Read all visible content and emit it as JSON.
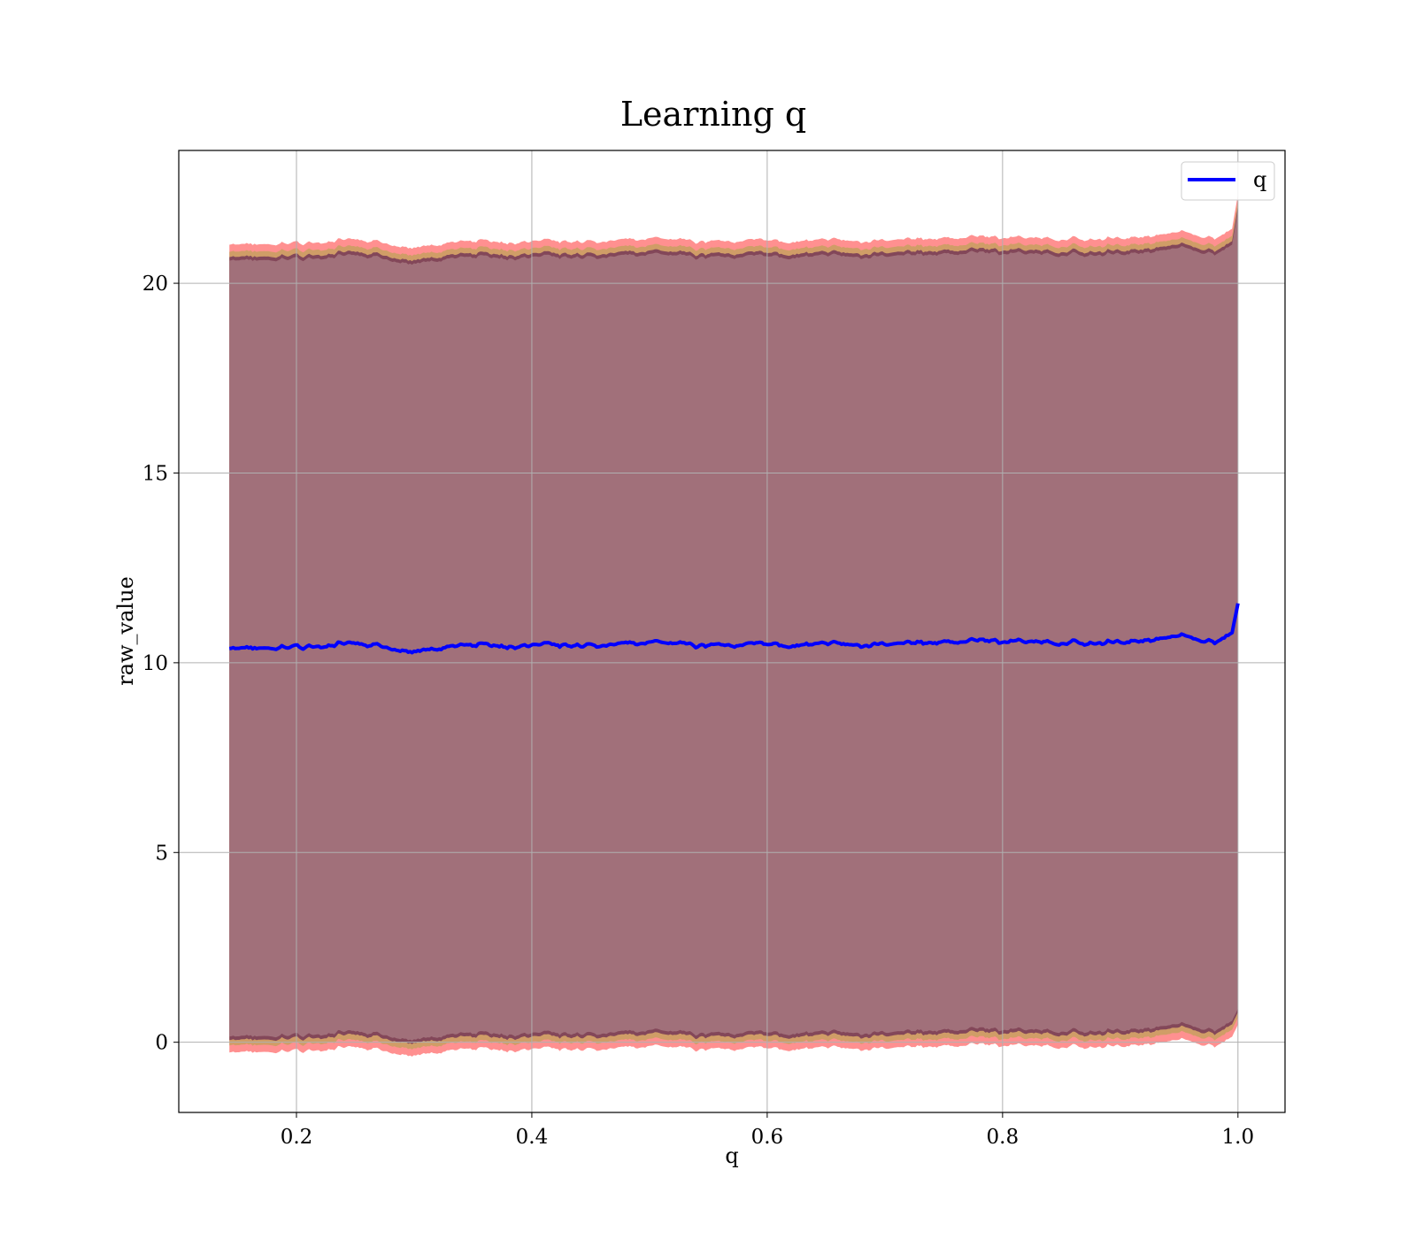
{
  "chart_data": {
    "type": "line",
    "title": "Learning q",
    "xlabel": "q",
    "ylabel": "raw_value",
    "xlim": [
      0.1,
      1.04
    ],
    "ylim": [
      -1.85,
      23.5
    ],
    "xticks": [
      0.2,
      0.4,
      0.6,
      0.8,
      1.0
    ],
    "xtick_labels": [
      "0.2",
      "0.4",
      "0.6",
      "0.8",
      "1.0"
    ],
    "yticks": [
      0,
      5,
      10,
      15,
      20
    ],
    "ytick_labels": [
      "0",
      "5",
      "10",
      "15",
      "20"
    ],
    "grid": true,
    "legend": {
      "position": "top-right",
      "entries": [
        "q"
      ]
    },
    "colors": {
      "line": "#0000ff",
      "band_outer": "#ff6b6b",
      "band_mid": "#c8a060",
      "band_inner": "#7a3e58",
      "fill": "#a1707a",
      "grid": "#b0b0b0"
    },
    "series": [
      {
        "name": "q",
        "x": [
          0.143,
          0.16,
          0.18,
          0.2,
          0.22,
          0.24,
          0.26,
          0.28,
          0.3,
          0.32,
          0.34,
          0.36,
          0.38,
          0.4,
          0.42,
          0.44,
          0.46,
          0.48,
          0.5,
          0.52,
          0.54,
          0.56,
          0.58,
          0.6,
          0.62,
          0.64,
          0.66,
          0.68,
          0.7,
          0.72,
          0.74,
          0.76,
          0.78,
          0.8,
          0.82,
          0.84,
          0.86,
          0.88,
          0.9,
          0.92,
          0.94,
          0.96,
          0.98,
          0.995,
          1.0
        ],
        "y": [
          10.35,
          10.4,
          10.35,
          10.45,
          10.4,
          10.5,
          10.45,
          10.4,
          10.3,
          10.35,
          10.45,
          10.5,
          10.4,
          10.45,
          10.5,
          10.4,
          10.45,
          10.5,
          10.55,
          10.5,
          10.45,
          10.5,
          10.45,
          10.5,
          10.45,
          10.5,
          10.5,
          10.45,
          10.5,
          10.55,
          10.5,
          10.55,
          10.6,
          10.55,
          10.6,
          10.5,
          10.55,
          10.5,
          10.55,
          10.6,
          10.65,
          10.7,
          10.5,
          10.8,
          11.6
        ]
      },
      {
        "x": [
          0.143,
          0.16,
          0.18,
          0.2,
          0.22,
          0.24,
          0.26,
          0.28,
          0.3,
          0.32,
          0.34,
          0.36,
          0.38,
          0.4,
          0.42,
          0.44,
          0.46,
          0.48,
          0.5,
          0.52,
          0.54,
          0.56,
          0.58,
          0.6,
          0.62,
          0.64,
          0.66,
          0.68,
          0.7,
          0.72,
          0.74,
          0.76,
          0.78,
          0.8,
          0.82,
          0.84,
          0.86,
          0.88,
          0.9,
          0.92,
          0.94,
          0.96,
          0.98,
          0.995,
          1.0
        ],
        "upper": [
          20.9,
          20.95,
          20.9,
          21.0,
          20.95,
          21.05,
          21.0,
          20.95,
          20.85,
          20.9,
          21.0,
          21.05,
          20.95,
          21.0,
          21.05,
          20.95,
          21.0,
          21.05,
          21.1,
          21.05,
          21.0,
          21.05,
          21.0,
          21.05,
          21.0,
          21.05,
          21.05,
          21.0,
          21.05,
          21.1,
          21.05,
          21.1,
          21.15,
          21.1,
          21.15,
          21.05,
          21.1,
          21.05,
          21.1,
          21.15,
          21.2,
          21.25,
          21.05,
          21.35,
          22.3
        ],
        "lower": [
          -0.2,
          -0.15,
          -0.2,
          -0.1,
          -0.15,
          -0.05,
          -0.1,
          -0.15,
          -0.25,
          -0.2,
          -0.1,
          -0.05,
          -0.15,
          -0.1,
          -0.05,
          -0.15,
          -0.1,
          -0.05,
          0.0,
          -0.05,
          -0.1,
          -0.05,
          -0.1,
          -0.05,
          -0.1,
          -0.05,
          -0.05,
          -0.1,
          -0.05,
          0.0,
          -0.05,
          0.0,
          0.05,
          0.0,
          0.05,
          -0.05,
          0.0,
          -0.05,
          0.0,
          0.05,
          0.1,
          0.15,
          -0.05,
          0.25,
          0.6
        ]
      }
    ]
  }
}
